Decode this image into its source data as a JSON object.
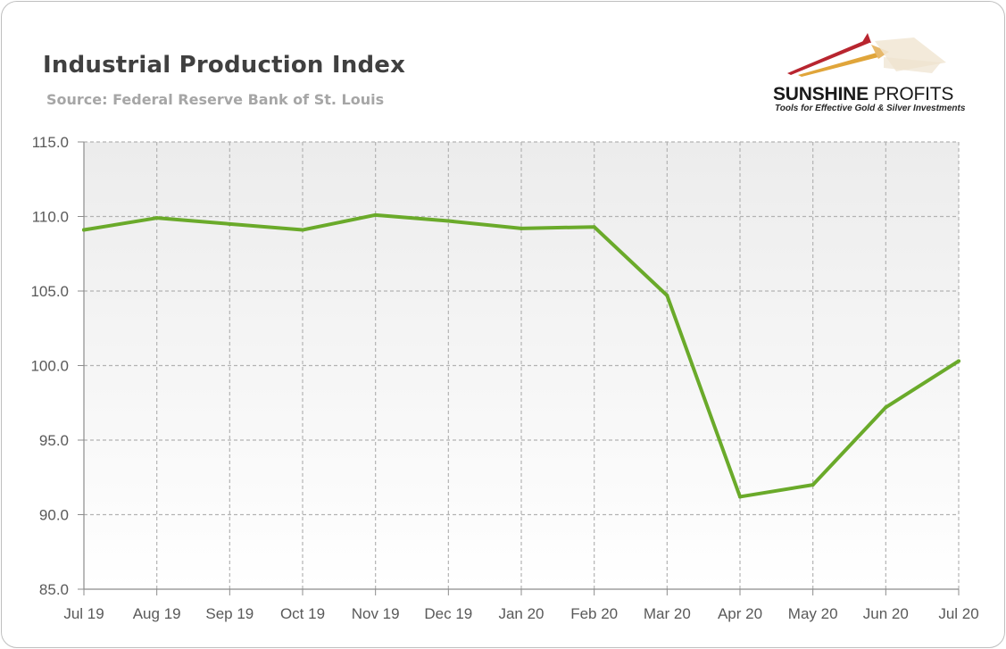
{
  "header": {
    "title": "Industrial Production Index",
    "subtitle": "Source: Federal Reserve Bank of St. Louis"
  },
  "logo": {
    "name_bold": "SUNSHINE",
    "name_regular": "PROFITS",
    "tagline": "Tools for Effective Gold & Silver Investments"
  },
  "colors": {
    "line": "#6aaa2a",
    "grid": "#b3b3b3",
    "plot_top": "#ececec",
    "plot_bottom": "#ffffff",
    "logo_red": "#b8252f",
    "logo_gold": "#e0a53a"
  },
  "chart_data": {
    "type": "line",
    "title": "Industrial Production Index",
    "subtitle": "Source: Federal Reserve Bank of St. Louis",
    "xlabel": "",
    "ylabel": "",
    "categories": [
      "Jul 19",
      "Aug 19",
      "Sep 19",
      "Oct 19",
      "Nov 19",
      "Dec 19",
      "Jan 20",
      "Feb 20",
      "Mar 20",
      "Apr 20",
      "May 20",
      "Jun 20",
      "Jul 20"
    ],
    "series": [
      {
        "values": [
          109.1,
          109.9,
          109.5,
          109.1,
          110.1,
          109.7,
          109.2,
          109.3,
          104.7,
          91.2,
          92.0,
          97.2,
          100.3
        ]
      }
    ],
    "ylim": [
      85.0,
      115.0
    ],
    "yticks": [
      "115.0",
      "110.0",
      "105.0",
      "100.0",
      "95.0",
      "90.0",
      "85.0"
    ],
    "grid": true,
    "legend": "none"
  }
}
